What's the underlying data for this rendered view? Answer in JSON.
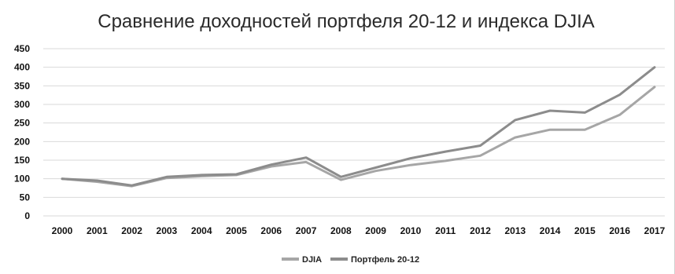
{
  "chart_data": {
    "type": "line",
    "title": "Сравнение доходностей портфеля 20-12 и индекса DJIA",
    "xlabel": "",
    "ylabel": "",
    "x": [
      "2000",
      "2001",
      "2002",
      "2003",
      "2004",
      "2005",
      "2006",
      "2007",
      "2008",
      "2009",
      "2010",
      "2011",
      "2012",
      "2013",
      "2014",
      "2015",
      "2016",
      "2017"
    ],
    "ylim": [
      0,
      450
    ],
    "yticks": [
      "0",
      "50",
      "100",
      "150",
      "200",
      "250",
      "300",
      "350",
      "400",
      "450"
    ],
    "grid": true,
    "legend_position": "bottom",
    "series": [
      {
        "name": "DJIA",
        "color": "#a6a6a6",
        "values": [
          100,
          92,
          80,
          102,
          107,
          110,
          133,
          145,
          97,
          121,
          137,
          148,
          162,
          211,
          232,
          232,
          272,
          347
        ]
      },
      {
        "name": "Портфель 20-12",
        "color": "#8c8c8c",
        "values": [
          100,
          95,
          82,
          105,
          110,
          112,
          138,
          157,
          105,
          130,
          155,
          173,
          189,
          258,
          283,
          278,
          326,
          400
        ]
      }
    ]
  }
}
